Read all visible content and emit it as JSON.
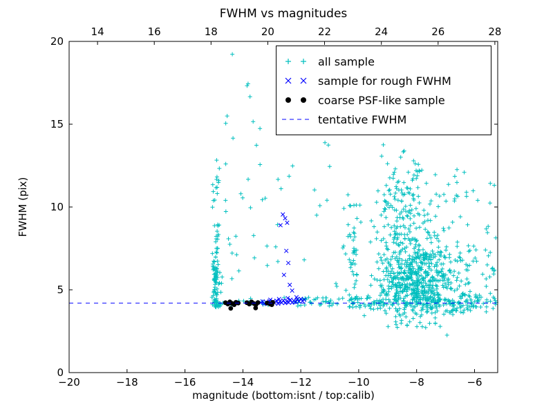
{
  "chart_data": {
    "type": "scatter",
    "title": "FWHM vs magnitudes",
    "xlabel": "magnitude (bottom:isnt / top:calib)",
    "ylabel": "FWHM (pix)",
    "xlim": [
      -20,
      -5.2
    ],
    "ylim": [
      0,
      20
    ],
    "xticks": [
      -20,
      -18,
      -16,
      -14,
      -12,
      -10,
      -8,
      -6
    ],
    "yticks": [
      0,
      5,
      10,
      15,
      20
    ],
    "top_axis": {
      "lim": [
        13.0,
        28.1
      ],
      "ticks": [
        14,
        16,
        18,
        20,
        22,
        24,
        26,
        28
      ]
    },
    "grid": false,
    "legend_position": "upper right",
    "axis_color": "#000000",
    "background_color": "#ffffff",
    "tentative_fwhm_value": 4.2,
    "seed": 7,
    "series": [
      {
        "id": "all-sample",
        "name": "all sample",
        "marker": "+",
        "color": "#00bfbf",
        "clusters": [
          {
            "type": "gauss",
            "n": 90,
            "cx": -14.93,
            "cy": 5.5,
            "sx": 0.07,
            "sy": 1.6,
            "ymin": 3.95,
            "ymax": 13.2
          },
          {
            "type": "uniform",
            "n": 18,
            "x": [
              -15.05,
              -14.78
            ],
            "y": [
              7.0,
              13.2
            ]
          },
          {
            "type": "uniform",
            "n": 10,
            "x": [
              -14.8,
              -13.4
            ],
            "y": [
              13.5,
              19.6
            ]
          },
          {
            "type": "uniform",
            "n": 30,
            "x": [
              -14.6,
              -12.25
            ],
            "y": [
              4.4,
              12.8
            ]
          },
          {
            "type": "gauss",
            "n": 45,
            "cx": -10.2,
            "cy": 7.0,
            "sx": 0.12,
            "sy": 2.5,
            "ymin": 3.9,
            "ymax": 14.6
          },
          {
            "type": "gauss",
            "n": 520,
            "cx": -8.05,
            "cy": 5.6,
            "sx": 0.6,
            "sy": 1.25,
            "ymin": 2.6,
            "ymax": 11.0
          },
          {
            "type": "gauss",
            "n": 210,
            "cx": -8.35,
            "cy": 8.8,
            "sx": 0.55,
            "sy": 1.9,
            "ymin": 5.0,
            "ymax": 15.5
          },
          {
            "type": "uniform",
            "n": 8,
            "x": [
              -9.3,
              -7.6
            ],
            "y": [
              12.5,
              15.3
            ]
          },
          {
            "type": "uniform",
            "n": 95,
            "x": [
              -7.6,
              -5.22
            ],
            "y": [
              3.6,
              7.5
            ]
          },
          {
            "type": "uniform",
            "n": 30,
            "x": [
              -7.3,
              -5.25
            ],
            "y": [
              7.5,
              12.3
            ]
          },
          {
            "type": "uniform",
            "n": 35,
            "x": [
              -12.3,
              -10.4
            ],
            "y": [
              4.0,
              4.55
            ]
          },
          {
            "type": "uniform",
            "n": 20,
            "x": [
              -15.05,
              -13.0
            ],
            "y": [
              4.05,
              4.5
            ]
          },
          {
            "type": "uniform",
            "n": 25,
            "x": [
              -10.4,
              -9.6
            ],
            "y": [
              3.9,
              4.6
            ]
          },
          {
            "type": "uniform",
            "n": 60,
            "x": [
              -9.6,
              -5.22
            ],
            "y": [
              4.05,
              4.4
            ]
          },
          {
            "type": "uniform",
            "n": 90,
            "x": [
              -9.7,
              -5.22
            ],
            "y": [
              3.7,
              5.0
            ]
          },
          {
            "type": "uniform",
            "n": 12,
            "x": [
              -12.0,
              -10.5
            ],
            "y": [
              5.0,
              14.0
            ]
          },
          {
            "type": "uniform",
            "n": 5,
            "x": [
              -9.3,
              -6.8
            ],
            "y": [
              1.4,
              3.1
            ]
          }
        ]
      },
      {
        "id": "rough-fwhm-sample",
        "name": "sample for rough FWHM",
        "marker": "x",
        "color": "#0000ff",
        "points": [
          [
            -13.38,
            4.22
          ],
          [
            -13.32,
            4.3
          ],
          [
            -13.26,
            4.15
          ],
          [
            -13.2,
            4.26
          ],
          [
            -13.14,
            4.2
          ],
          [
            -13.08,
            4.32
          ],
          [
            -13.02,
            4.18
          ],
          [
            -12.96,
            4.28
          ],
          [
            -12.9,
            4.2
          ],
          [
            -12.84,
            4.34
          ],
          [
            -12.78,
            4.16
          ],
          [
            -12.72,
            4.3
          ],
          [
            -12.66,
            4.22
          ],
          [
            -12.6,
            4.36
          ],
          [
            -12.54,
            4.2
          ],
          [
            -12.48,
            4.3
          ],
          [
            -12.42,
            4.24
          ],
          [
            -12.36,
            4.4
          ],
          [
            -12.3,
            4.22
          ],
          [
            -12.24,
            4.34
          ],
          [
            -12.18,
            4.26
          ],
          [
            -12.12,
            4.42
          ],
          [
            -12.06,
            4.3
          ],
          [
            -12.0,
            4.45
          ],
          [
            -11.94,
            4.32
          ],
          [
            -11.88,
            4.4
          ],
          [
            -13.05,
            4.4
          ],
          [
            -12.75,
            4.44
          ],
          [
            -12.45,
            4.5
          ],
          [
            -12.15,
            4.55
          ],
          [
            -12.62,
            9.55
          ],
          [
            -12.54,
            9.32
          ],
          [
            -12.47,
            9.05
          ],
          [
            -12.7,
            8.9
          ],
          [
            -12.5,
            7.35
          ],
          [
            -12.43,
            6.62
          ],
          [
            -12.58,
            5.9
          ],
          [
            -12.38,
            5.3
          ],
          [
            -12.3,
            4.95
          ]
        ]
      },
      {
        "id": "coarse-psf-sample",
        "name": "coarse PSF-like sample",
        "marker": "circle",
        "color": "#000000",
        "points": [
          [
            -14.6,
            4.22
          ],
          [
            -14.52,
            4.14
          ],
          [
            -14.45,
            4.27
          ],
          [
            -14.38,
            4.18
          ],
          [
            -14.3,
            4.1
          ],
          [
            -14.24,
            4.24
          ],
          [
            -14.16,
            4.2
          ],
          [
            -14.42,
            3.88
          ],
          [
            -13.86,
            4.22
          ],
          [
            -13.78,
            4.14
          ],
          [
            -13.7,
            4.27
          ],
          [
            -13.62,
            4.17
          ],
          [
            -13.55,
            4.1
          ],
          [
            -13.48,
            4.23
          ],
          [
            -13.56,
            3.9
          ],
          [
            -13.16,
            4.2
          ],
          [
            -13.06,
            4.14
          ],
          [
            -12.97,
            4.24
          ],
          [
            -13.0,
            4.1
          ]
        ]
      },
      {
        "id": "tentative-fwhm",
        "name": "tentative FWHM",
        "style": "hline",
        "linestyle": "dashed",
        "color": "#0000ff",
        "y": 4.2
      }
    ]
  }
}
